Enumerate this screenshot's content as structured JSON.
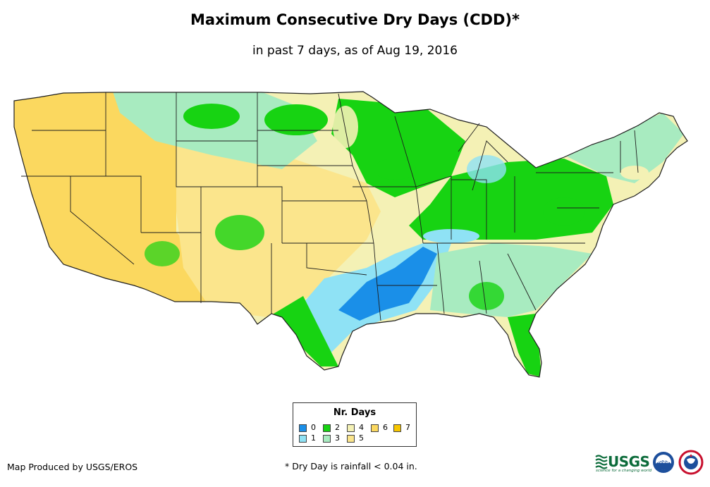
{
  "title": "Maximum Consecutive Dry Days (CDD)*",
  "subtitle": "in past 7 days, as of Aug 19, 2016",
  "legend": {
    "title": "Nr. Days",
    "items": [
      {
        "label": "0",
        "color": "#1a8fe8"
      },
      {
        "label": "1",
        "color": "#8fe2f5"
      },
      {
        "label": "2",
        "color": "#17d312"
      },
      {
        "label": "3",
        "color": "#a8ebc0"
      },
      {
        "label": "4",
        "color": "#f4f1b5"
      },
      {
        "label": "5",
        "color": "#fbe58c"
      },
      {
        "label": "6",
        "color": "#fbd85f"
      },
      {
        "label": "7",
        "color": "#f7c600"
      }
    ]
  },
  "footer": {
    "producer": "Map Produced by USGS/EROS",
    "note": "* Dry Day is rainfall < 0.04 in."
  },
  "logos": {
    "usgs": "USGS",
    "usgs_tagline": "science for a changing world",
    "noaa": "noaa"
  },
  "colors": {
    "border": "#1e1e1e",
    "background": "#ffffff"
  }
}
